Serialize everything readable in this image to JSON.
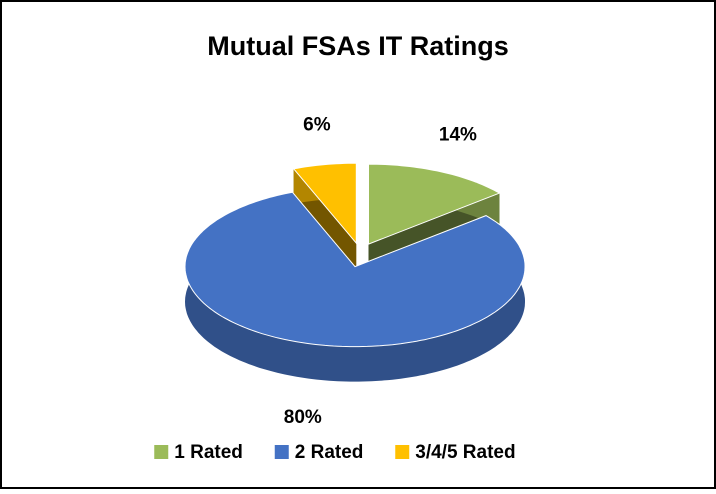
{
  "chart_data": {
    "type": "pie",
    "title": "Mutual FSAs IT Ratings",
    "categories": [
      "1 Rated",
      "2 Rated",
      "3/4/5 Rated"
    ],
    "values": [
      14,
      80,
      6
    ],
    "value_labels": [
      "14%",
      "80%",
      "6%"
    ],
    "colors": [
      "#9bbb59",
      "#4472c4",
      "#ffc000"
    ],
    "legend": "bottom"
  }
}
